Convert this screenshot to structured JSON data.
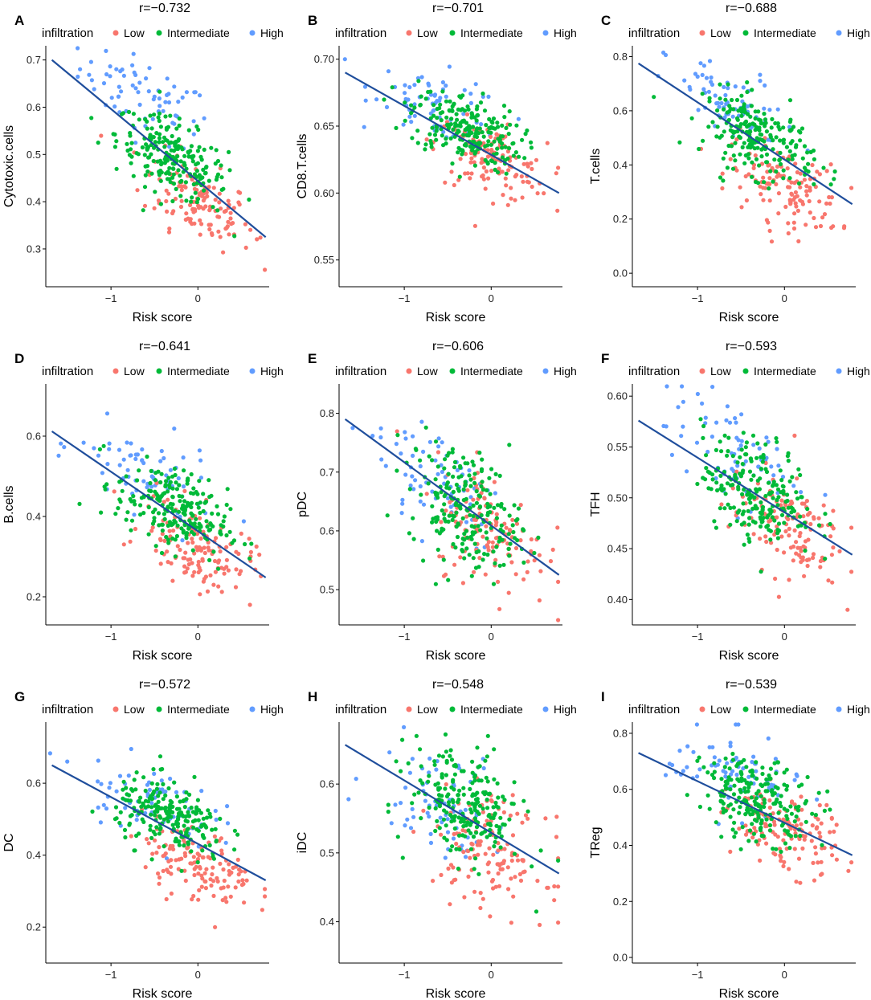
{
  "figure": {
    "legend_title": "infiltration",
    "legend_items": [
      {
        "label": "Low",
        "color": "#F8766D"
      },
      {
        "label": "Intermediate",
        "color": "#00BA38"
      },
      {
        "label": "High",
        "color": "#619CFF"
      }
    ],
    "fit_line_color": "#1F4E9C"
  },
  "chart_data": [
    {
      "panel": "A",
      "type": "scatter",
      "title": "r=−0.732",
      "xlabel": "Risk score",
      "ylabel": "Cytotoxic.cells",
      "xlim": [
        -1.75,
        0.82
      ],
      "xticks": [
        -1,
        0
      ],
      "ylim": [
        0.22,
        0.73
      ],
      "yticks": [
        0.3,
        0.4,
        0.5,
        0.6,
        0.7
      ],
      "ytick_labels": [
        "0.3",
        "0.4",
        "0.5",
        "0.6",
        "0.7"
      ],
      "fit": {
        "x": [
          -1.68,
          0.78
        ],
        "y": [
          0.7,
          0.325
        ]
      },
      "high_center": [
        -0.6,
        0.62
      ],
      "int_center": [
        -0.3,
        0.49
      ],
      "low_center": [
        0.0,
        0.4
      ],
      "spread_y": 0.04
    },
    {
      "panel": "B",
      "type": "scatter",
      "title": "r=−0.701",
      "xlabel": "Risk score",
      "ylabel": "CD8.T.cells",
      "xlim": [
        -1.75,
        0.82
      ],
      "xticks": [
        -1,
        0
      ],
      "ylim": [
        0.53,
        0.71
      ],
      "yticks": [
        0.55,
        0.6,
        0.65,
        0.7
      ],
      "ytick_labels": [
        "0.55",
        "0.60",
        "0.65",
        "0.70"
      ],
      "fit": {
        "x": [
          -1.68,
          0.78
        ],
        "y": [
          0.69,
          0.6
        ]
      },
      "high_center": [
        -0.6,
        0.665
      ],
      "int_center": [
        -0.3,
        0.648
      ],
      "low_center": [
        0.0,
        0.624
      ],
      "spread_y": 0.013
    },
    {
      "panel": "C",
      "type": "scatter",
      "title": "r=−0.688",
      "xlabel": "Risk score",
      "ylabel": "T.cells",
      "xlim": [
        -1.75,
        0.82
      ],
      "xticks": [
        -1,
        0
      ],
      "ylim": [
        -0.05,
        0.84
      ],
      "yticks": [
        0.0,
        0.2,
        0.4,
        0.6,
        0.8
      ],
      "ytick_labels": [
        "0.0",
        "0.2",
        "0.4",
        "0.6",
        "0.8"
      ],
      "fit": {
        "x": [
          -1.68,
          0.78
        ],
        "y": [
          0.775,
          0.255
        ]
      },
      "high_center": [
        -0.6,
        0.62
      ],
      "int_center": [
        -0.3,
        0.5
      ],
      "low_center": [
        0.0,
        0.32
      ],
      "spread_y": 0.07
    },
    {
      "panel": "D",
      "type": "scatter",
      "title": "r=−0.641",
      "xlabel": "Risk score",
      "ylabel": "B.cells",
      "xlim": [
        -1.75,
        0.82
      ],
      "xticks": [
        -1,
        0
      ],
      "ylim": [
        0.13,
        0.73
      ],
      "yticks": [
        0.2,
        0.4,
        0.6
      ],
      "ytick_labels": [
        "0.2",
        "0.4",
        "0.6"
      ],
      "fit": {
        "x": [
          -1.68,
          0.78
        ],
        "y": [
          0.612,
          0.248
        ]
      },
      "high_center": [
        -0.6,
        0.5
      ],
      "int_center": [
        -0.3,
        0.42
      ],
      "low_center": [
        0.0,
        0.32
      ],
      "spread_y": 0.05
    },
    {
      "panel": "E",
      "type": "scatter",
      "title": "r=−0.606",
      "xlabel": "Risk score",
      "ylabel": "pDC",
      "xlim": [
        -1.75,
        0.82
      ],
      "xticks": [
        -1,
        0
      ],
      "ylim": [
        0.44,
        0.85
      ],
      "yticks": [
        0.5,
        0.6,
        0.7,
        0.8
      ],
      "ytick_labels": [
        "0.5",
        "0.6",
        "0.7",
        "0.8"
      ],
      "fit": {
        "x": [
          -1.68,
          0.78
        ],
        "y": [
          0.79,
          0.525
        ]
      },
      "high_center": [
        -0.6,
        0.69
      ],
      "int_center": [
        -0.3,
        0.64
      ],
      "low_center": [
        0.0,
        0.6
      ],
      "spread_y": 0.05
    },
    {
      "panel": "F",
      "type": "scatter",
      "title": "r=−0.593",
      "xlabel": "Risk score",
      "ylabel": "TFH",
      "xlim": [
        -1.75,
        0.82
      ],
      "xticks": [
        -1,
        0
      ],
      "ylim": [
        0.375,
        0.612
      ],
      "yticks": [
        0.4,
        0.45,
        0.5,
        0.55,
        0.6
      ],
      "ytick_labels": [
        "0.40",
        "0.45",
        "0.50",
        "0.55",
        "0.60"
      ],
      "fit": {
        "x": [
          -1.68,
          0.78
        ],
        "y": [
          0.576,
          0.444
        ]
      },
      "high_center": [
        -0.6,
        0.545
      ],
      "int_center": [
        -0.3,
        0.505
      ],
      "low_center": [
        0.0,
        0.475
      ],
      "spread_y": 0.025
    },
    {
      "panel": "G",
      "type": "scatter",
      "title": "r=−0.572",
      "xlabel": "Risk score",
      "ylabel": "DC",
      "xlim": [
        -1.75,
        0.82
      ],
      "xticks": [
        -1,
        0
      ],
      "ylim": [
        0.1,
        0.77
      ],
      "yticks": [
        0.2,
        0.4,
        0.6
      ],
      "ytick_labels": [
        "0.2",
        "0.4",
        "0.6"
      ],
      "fit": {
        "x": [
          -1.68,
          0.78
        ],
        "y": [
          0.65,
          0.33
        ]
      },
      "high_center": [
        -0.6,
        0.56
      ],
      "int_center": [
        -0.3,
        0.5
      ],
      "low_center": [
        0.0,
        0.37
      ],
      "spread_y": 0.05
    },
    {
      "panel": "H",
      "type": "scatter",
      "title": "r=−0.548",
      "xlabel": "Risk score",
      "ylabel": "iDC",
      "xlim": [
        -1.75,
        0.82
      ],
      "xticks": [
        -1,
        0
      ],
      "ylim": [
        0.34,
        0.69
      ],
      "yticks": [
        0.4,
        0.5,
        0.6
      ],
      "ytick_labels": [
        "0.4",
        "0.5",
        "0.6"
      ],
      "fit": {
        "x": [
          -1.68,
          0.78
        ],
        "y": [
          0.657,
          0.47
        ]
      },
      "high_center": [
        -0.6,
        0.58
      ],
      "int_center": [
        -0.3,
        0.57
      ],
      "low_center": [
        0.0,
        0.5
      ],
      "spread_y": 0.04
    },
    {
      "panel": "I",
      "type": "scatter",
      "title": "r=−0.539",
      "xlabel": "Risk score",
      "ylabel": "TReg",
      "xlim": [
        -1.75,
        0.82
      ],
      "xticks": [
        -1,
        0
      ],
      "ylim": [
        -0.02,
        0.84
      ],
      "yticks": [
        0.0,
        0.2,
        0.4,
        0.6,
        0.8
      ],
      "ytick_labels": [
        "0.0",
        "0.2",
        "0.4",
        "0.6",
        "0.8"
      ],
      "fit": {
        "x": [
          -1.68,
          0.78
        ],
        "y": [
          0.73,
          0.365
        ]
      },
      "high_center": [
        -0.6,
        0.66
      ],
      "int_center": [
        -0.3,
        0.56
      ],
      "low_center": [
        0.0,
        0.45
      ],
      "spread_y": 0.07
    }
  ]
}
